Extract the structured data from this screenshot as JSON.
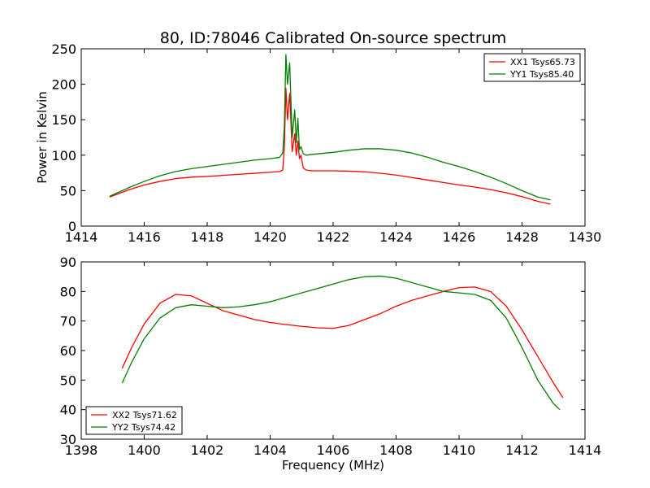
{
  "chart_data": [
    {
      "type": "line",
      "title": "80, ID:78046 Calibrated On-source spectrum",
      "xlabel": "",
      "ylabel": "Power in Kelvin",
      "xlim": [
        1414,
        1430
      ],
      "ylim": [
        0,
        250
      ],
      "xticks": [
        1414,
        1416,
        1418,
        1420,
        1422,
        1424,
        1426,
        1428,
        1430
      ],
      "yticks": [
        0,
        50,
        100,
        150,
        200,
        250
      ],
      "legend_position": "top-right",
      "grid": false,
      "series": [
        {
          "name": "XX1 Tsys65.73",
          "color": "#ff0000",
          "x": [
            1414.9,
            1415.2,
            1415.5,
            1416.0,
            1416.5,
            1417.0,
            1417.5,
            1418.0,
            1418.5,
            1419.0,
            1419.5,
            1420.0,
            1420.3,
            1420.4,
            1420.45,
            1420.5,
            1420.55,
            1420.62,
            1420.7,
            1420.78,
            1420.83,
            1420.88,
            1420.93,
            1420.98,
            1421.05,
            1421.15,
            1421.3,
            1422.0,
            1422.5,
            1423.0,
            1423.5,
            1424.0,
            1424.5,
            1425.0,
            1425.5,
            1426.0,
            1426.5,
            1427.0,
            1427.5,
            1428.0,
            1428.5,
            1428.9
          ],
          "y": [
            41,
            46,
            51,
            58,
            63,
            67,
            69,
            70,
            71.5,
            73,
            74.5,
            76,
            77,
            79,
            110,
            194,
            150,
            187,
            105,
            130,
            100,
            120,
            95,
            100,
            82,
            79,
            78,
            78,
            77.5,
            76.5,
            74.5,
            72,
            68.5,
            65,
            61.5,
            58,
            55,
            51.5,
            47,
            41.5,
            35,
            31
          ]
        },
        {
          "name": "YY1 Tsys85.40",
          "color": "#008000",
          "x": [
            1414.9,
            1415.2,
            1415.5,
            1416.0,
            1416.5,
            1417.0,
            1417.5,
            1418.0,
            1418.5,
            1419.0,
            1419.5,
            1420.0,
            1420.3,
            1420.4,
            1420.45,
            1420.5,
            1420.55,
            1420.62,
            1420.7,
            1420.78,
            1420.83,
            1420.88,
            1420.93,
            1420.98,
            1421.05,
            1421.15,
            1421.3,
            1422.0,
            1422.5,
            1423.0,
            1423.5,
            1424.0,
            1424.5,
            1425.0,
            1425.5,
            1426.0,
            1426.5,
            1427.0,
            1427.5,
            1428.0,
            1428.5,
            1428.9
          ],
          "y": [
            42,
            48,
            54,
            63,
            71,
            77,
            81,
            84,
            87,
            90,
            93,
            95,
            97,
            103,
            140,
            242,
            200,
            230,
            125,
            164,
            118,
            152,
            108,
            112,
            102,
            100,
            101,
            104,
            107,
            109,
            109,
            107,
            103,
            97,
            90,
            84,
            77,
            69,
            60,
            50,
            41,
            37
          ]
        }
      ]
    },
    {
      "type": "line",
      "title": "",
      "xlabel": "Frequency (MHz)",
      "ylabel": "",
      "xlim": [
        1398,
        1414
      ],
      "ylim": [
        30,
        90
      ],
      "xticks": [
        1398,
        1400,
        1402,
        1404,
        1406,
        1408,
        1410,
        1412,
        1414
      ],
      "yticks": [
        30,
        40,
        50,
        60,
        70,
        80,
        90
      ],
      "legend_position": "bottom-left",
      "grid": false,
      "series": [
        {
          "name": "XX2 Tsys71.62",
          "color": "#ff0000",
          "x": [
            1399.3,
            1399.6,
            1400.0,
            1400.5,
            1401.0,
            1401.5,
            1402.0,
            1402.5,
            1403.0,
            1403.5,
            1404.0,
            1404.5,
            1405.0,
            1405.5,
            1406.0,
            1406.5,
            1407.0,
            1407.5,
            1408.0,
            1408.5,
            1409.0,
            1409.5,
            1410.0,
            1410.5,
            1411.0,
            1411.5,
            1412.0,
            1412.5,
            1413.0,
            1413.3
          ],
          "y": [
            54,
            61,
            69,
            76,
            79,
            78.5,
            76,
            73.5,
            72,
            70.5,
            69.5,
            68.8,
            68.2,
            67.7,
            67.5,
            68.5,
            70.5,
            72.5,
            75,
            77,
            78.5,
            80,
            81.3,
            81.5,
            80,
            75,
            67,
            58,
            49,
            44
          ]
        },
        {
          "name": "YY2 Tsys74.42",
          "color": "#008000",
          "x": [
            1399.3,
            1399.6,
            1400.0,
            1400.5,
            1401.0,
            1401.5,
            1402.0,
            1402.5,
            1403.0,
            1403.5,
            1404.0,
            1404.5,
            1405.0,
            1405.5,
            1406.0,
            1406.5,
            1407.0,
            1407.5,
            1408.0,
            1408.5,
            1409.0,
            1409.5,
            1410.0,
            1410.5,
            1411.0,
            1411.5,
            1412.0,
            1412.5,
            1413.0,
            1413.2
          ],
          "y": [
            49,
            56,
            64,
            71,
            74.5,
            75.5,
            75,
            74.5,
            74.8,
            75.5,
            76.5,
            78,
            79.5,
            81,
            82.5,
            84,
            85,
            85.2,
            84.5,
            83,
            81.5,
            80,
            79.5,
            79,
            77,
            71,
            61,
            50,
            42,
            40
          ]
        }
      ]
    }
  ]
}
